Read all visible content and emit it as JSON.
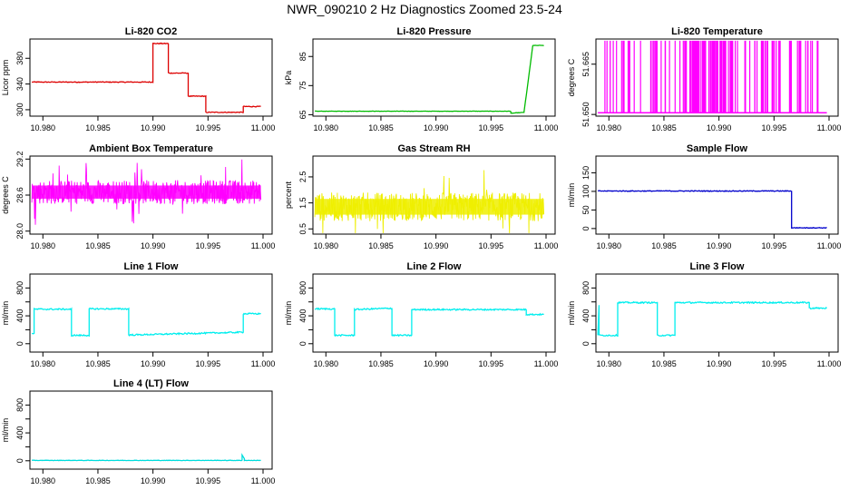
{
  "figure_title": "NWR_090210  2 Hz Diagnostics Zoomed 23.5-24",
  "x_axis": {
    "ticks": [
      10.98,
      10.985,
      10.99,
      10.995,
      11.0
    ],
    "tick_labels": [
      "10.980",
      "10.985",
      "10.990",
      "10.995",
      "11.000"
    ],
    "range": [
      10.979,
      11.0
    ]
  },
  "chart_data": [
    {
      "id": "co2",
      "type": "line",
      "title": "Li-820 CO2",
      "ylabel": "Licor ppm",
      "color": "#ff0000",
      "lineColor": "#dd0000",
      "ylim": [
        290,
        410
      ],
      "yticks": [
        300,
        340,
        380
      ],
      "ytick_labels": [
        "300",
        "340",
        "380"
      ],
      "noise": 0.6,
      "series": [
        {
          "name": "CO2",
          "x": [
            10.979,
            10.99,
            10.99,
            10.9914,
            10.9914,
            10.9932,
            10.9932,
            10.9948,
            10.9948,
            10.9982,
            10.9982,
            10.9998
          ],
          "y": [
            343,
            343,
            403,
            403,
            357,
            357,
            321,
            321,
            296,
            296,
            305,
            305
          ]
        }
      ]
    },
    {
      "id": "pressure",
      "type": "line",
      "title": "Li-820 Pressure",
      "ylabel": "kPa",
      "color": "#00bb00",
      "lineColor": "#00bb00",
      "ylim": [
        64.5,
        91
      ],
      "yticks": [
        65,
        75,
        85
      ],
      "ytick_labels": [
        "65",
        "75",
        "85"
      ],
      "noise": 0.05,
      "series": [
        {
          "name": "Pressure",
          "x": [
            10.979,
            10.9968,
            10.9968,
            10.998,
            10.9988,
            10.9998
          ],
          "y": [
            66.2,
            66.2,
            65.5,
            65.8,
            88.8,
            88.8
          ]
        }
      ]
    },
    {
      "id": "temperature",
      "type": "line",
      "title": "Li-820 Temperature",
      "ylabel": "degrees C",
      "color": "#ff00ff",
      "lineColor": "#ff00ff",
      "ylim": [
        51.6495,
        51.6725
      ],
      "yticks": [
        51.65,
        51.665
      ],
      "ytick_labels": [
        "51.650",
        "51.665"
      ],
      "baseline": 51.6505,
      "spike": 51.672,
      "series": [
        {
          "name": "Temperature",
          "x": [
            10.979,
            10.9998
          ],
          "y": [
            51.6505,
            51.6505
          ]
        }
      ]
    },
    {
      "id": "box_temp",
      "type": "line",
      "title": "Ambient Box Temperature",
      "ylabel": "degrees C",
      "color": "#ff00ff",
      "lineColor": "#ff00ff",
      "ylim": [
        27.95,
        29.25
      ],
      "yticks": [
        28.0,
        28.6,
        29.2
      ],
      "ytick_labels": [
        "28.0",
        "28.6",
        "29.2"
      ],
      "mean": 28.65,
      "band": 0.2,
      "series": [
        {
          "name": "Box Temp",
          "x": [
            10.979,
            10.9998
          ],
          "y": [
            28.65,
            28.65
          ]
        }
      ]
    },
    {
      "id": "rh",
      "type": "line",
      "title": "Gas Stream RH",
      "ylabel": "percent",
      "color": "#ffff00",
      "lineColor": "#eeee00",
      "ylim": [
        0.3,
        3.3
      ],
      "yticks": [
        0.5,
        1.5,
        2.5
      ],
      "ytick_labels": [
        "0.5",
        "1.5",
        "2.5"
      ],
      "mean": 1.35,
      "band": 0.55,
      "series": [
        {
          "name": "RH",
          "x": [
            10.979,
            10.9998
          ],
          "y": [
            1.35,
            1.35
          ]
        }
      ]
    },
    {
      "id": "sample_flow",
      "type": "line",
      "title": "Sample Flow",
      "ylabel": "ml/min",
      "color": "#0000cc",
      "lineColor": "#0000cc",
      "ylim": [
        -15,
        195
      ],
      "yticks": [
        0,
        50,
        100,
        150
      ],
      "ytick_labels": [
        "0",
        "50",
        "100",
        "150"
      ],
      "noise": 1.0,
      "series": [
        {
          "name": "Sample Flow",
          "x": [
            10.979,
            10.9966,
            10.9966,
            10.9998
          ],
          "y": [
            101,
            101,
            2,
            2
          ]
        }
      ]
    },
    {
      "id": "line1",
      "type": "line",
      "title": "Line 1 Flow",
      "ylabel": "ml/min",
      "color": "#00ffff",
      "lineColor": "#00eeee",
      "ylim": [
        -120,
        1000
      ],
      "yticks": [
        0,
        400,
        800
      ],
      "ytick_labels": [
        "0",
        "400",
        "800"
      ],
      "yminor": [
        200,
        600
      ],
      "noise": 10,
      "series": [
        {
          "name": "Line 1",
          "x": [
            10.979,
            10.9792,
            10.9792,
            10.9826,
            10.9826,
            10.9842,
            10.9842,
            10.9878,
            10.9878,
            10.9982,
            10.9982,
            10.9998
          ],
          "y": [
            150,
            150,
            495,
            495,
            120,
            120,
            500,
            500,
            125,
            165,
            430,
            430
          ]
        }
      ]
    },
    {
      "id": "line2",
      "type": "line",
      "title": "Line 2 Flow",
      "ylabel": "ml/min",
      "color": "#00ffff",
      "lineColor": "#00eeee",
      "ylim": [
        -120,
        1000
      ],
      "yticks": [
        0,
        400,
        800
      ],
      "ytick_labels": [
        "0",
        "400",
        "800"
      ],
      "yminor": [
        200,
        600
      ],
      "noise": 10,
      "series": [
        {
          "name": "Line 2",
          "x": [
            10.979,
            10.9808,
            10.9808,
            10.9826,
            10.9826,
            10.986,
            10.986,
            10.9878,
            10.9878,
            10.9982,
            10.9982,
            10.9998
          ],
          "y": [
            500,
            500,
            120,
            120,
            490,
            510,
            120,
            120,
            490,
            490,
            420,
            420
          ]
        }
      ]
    },
    {
      "id": "line3",
      "type": "line",
      "title": "Line 3 Flow",
      "ylabel": "ml/min",
      "color": "#00ffff",
      "lineColor": "#00eeee",
      "ylim": [
        -120,
        1000
      ],
      "yticks": [
        0,
        400,
        800
      ],
      "ytick_labels": [
        "0",
        "400",
        "800"
      ],
      "yminor": [
        200,
        600
      ],
      "noise": 10,
      "series": [
        {
          "name": "Line 3",
          "x": [
            10.979,
            10.9791,
            10.9791,
            10.9808,
            10.9808,
            10.9844,
            10.9844,
            10.986,
            10.986,
            10.9982,
            10.9982,
            10.9998
          ],
          "y": [
            120,
            560,
            120,
            120,
            590,
            590,
            120,
            120,
            590,
            590,
            510,
            510
          ]
        }
      ]
    },
    {
      "id": "line4",
      "type": "line",
      "title": "Line 4 (LT) Flow",
      "ylabel": "ml/min",
      "color": "#00ffff",
      "lineColor": "#00dddd",
      "ylim": [
        -120,
        1000
      ],
      "yticks": [
        0,
        400,
        800
      ],
      "ytick_labels": [
        "0",
        "400",
        "800"
      ],
      "yminor": [
        200,
        600
      ],
      "noise": 3,
      "series": [
        {
          "name": "Line 4",
          "x": [
            10.979,
            10.9981,
            10.9981,
            10.9983,
            10.9983,
            10.9998
          ],
          "y": [
            5,
            5,
            80,
            30,
            5,
            5
          ]
        }
      ]
    }
  ]
}
